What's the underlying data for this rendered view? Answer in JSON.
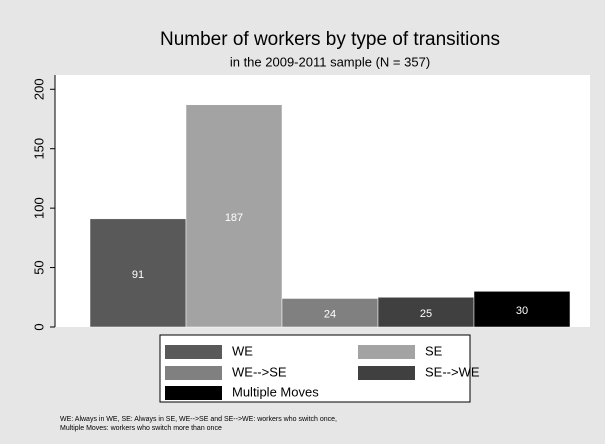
{
  "chart_data": {
    "type": "bar",
    "title": "Number of workers by type of transitions",
    "subtitle": "in the 2009-2011 sample (N = 357)",
    "series": [
      {
        "name": "WE",
        "color": "#595959",
        "values": [
          91
        ]
      },
      {
        "name": "SE",
        "color": "#a3a3a3",
        "values": [
          187
        ]
      },
      {
        "name": "WE-->SE",
        "color": "#808080",
        "values": [
          24
        ]
      },
      {
        "name": "SE-->WE",
        "color": "#404040",
        "values": [
          25
        ]
      },
      {
        "name": "Multiple Moves",
        "color": "#000000",
        "values": [
          30
        ]
      }
    ],
    "ylim": [
      0,
      212
    ],
    "yticks": [
      0,
      50,
      100,
      150,
      200
    ],
    "grid": false,
    "legend": "bottom",
    "notes": [
      "WE: Always in WE, SE: Always in SE, WE-->SE and SE-->WE: workers who switch once,",
      "Multiple Moves: workers who switch more than once"
    ]
  }
}
